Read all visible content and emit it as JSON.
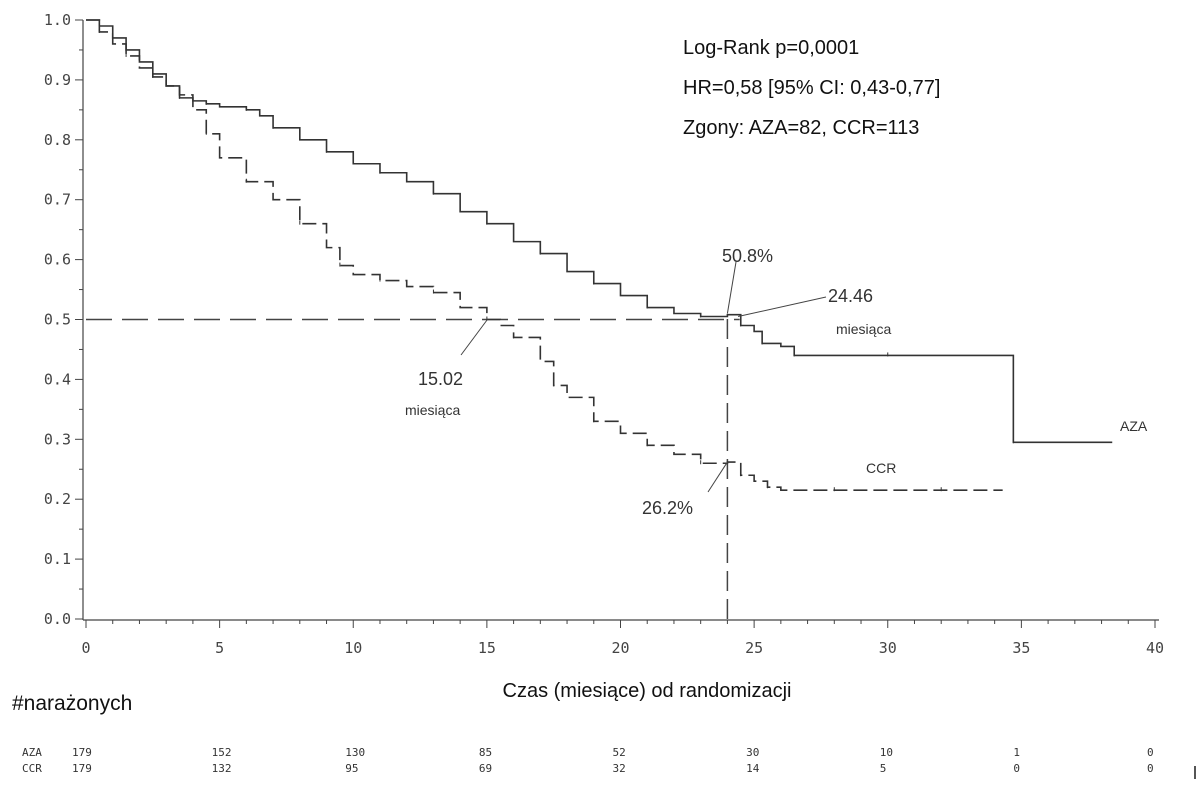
{
  "stats": {
    "line1": "Log-Rank p=0,0001",
    "line2": "HR=0,58 [95% CI: 0,43-0,77]",
    "line3": "Zgony: AZA=82, CCR=113"
  },
  "annotations": {
    "aza_pct": "50.8%",
    "ccr_pct": "26.2%",
    "aza_median": "24.46",
    "aza_median_unit": "miesiąca",
    "ccr_median": "15.02",
    "ccr_median_unit": "miesiąca",
    "aza_label": "AZA",
    "ccr_label": "CCR"
  },
  "risk_table": {
    "title": "#narażonych",
    "rows": [
      {
        "label": "AZA",
        "values": [
          "179",
          "152",
          "130",
          "85",
          "52",
          "30",
          "10",
          "1",
          "0"
        ]
      },
      {
        "label": "CCR",
        "values": [
          "179",
          "132",
          "95",
          "69",
          "32",
          "14",
          "5",
          "0",
          "0"
        ]
      }
    ]
  },
  "chart_data": {
    "type": "line",
    "xlabel": "Czas (miesiące) od randomizacji",
    "ylabel": "",
    "xlim": [
      0,
      40
    ],
    "ylim": [
      0,
      1
    ],
    "x_ticks": [
      "0",
      "5",
      "10",
      "15",
      "20",
      "25",
      "30",
      "35",
      "40"
    ],
    "y_ticks": [
      "0.0",
      "0.1",
      "0.2",
      "0.3",
      "0.4",
      "0.5",
      "0.6",
      "0.7",
      "0.8",
      "0.9",
      "1.0"
    ],
    "grid": false,
    "reference_lines": [
      {
        "orientation": "horizontal",
        "y": 0.5,
        "x_range": [
          0,
          24.46
        ]
      },
      {
        "orientation": "vertical",
        "x": 24.0,
        "y_range": [
          0,
          0.508
        ]
      }
    ],
    "series": [
      {
        "name": "AZA",
        "style": "solid",
        "color": "#333333",
        "x": [
          0,
          0.5,
          1,
          1.5,
          2,
          2.5,
          3,
          3.5,
          4,
          4.5,
          5,
          6,
          6.5,
          7,
          8,
          9,
          10,
          11,
          12,
          13,
          14,
          15,
          16,
          17,
          18,
          19,
          20,
          21,
          22,
          23,
          24,
          24.5,
          25,
          25.3,
          26,
          26.5,
          28,
          30,
          34.7,
          34.7,
          36,
          38.4
        ],
        "y": [
          1.0,
          0.99,
          0.97,
          0.95,
          0.93,
          0.91,
          0.89,
          0.87,
          0.865,
          0.86,
          0.855,
          0.85,
          0.84,
          0.82,
          0.8,
          0.78,
          0.76,
          0.745,
          0.73,
          0.71,
          0.68,
          0.66,
          0.63,
          0.61,
          0.58,
          0.56,
          0.54,
          0.52,
          0.51,
          0.505,
          0.508,
          0.49,
          0.48,
          0.46,
          0.455,
          0.44,
          0.44,
          0.44,
          0.44,
          0.295,
          0.295,
          0.295
        ]
      },
      {
        "name": "CCR",
        "style": "dashed",
        "color": "#333333",
        "x": [
          0,
          0.5,
          1,
          1.5,
          2,
          2.5,
          3,
          3.5,
          4,
          4.5,
          5,
          6,
          7,
          8,
          9,
          9.5,
          10,
          11,
          12,
          13,
          14,
          15,
          15.5,
          16,
          17,
          17.5,
          18,
          19,
          20,
          21,
          22,
          23,
          24,
          24.5,
          25,
          25.5,
          26,
          28,
          30,
          32,
          34.3
        ],
        "y": [
          1.0,
          0.98,
          0.96,
          0.94,
          0.92,
          0.905,
          0.89,
          0.875,
          0.85,
          0.81,
          0.77,
          0.73,
          0.7,
          0.66,
          0.62,
          0.59,
          0.575,
          0.565,
          0.555,
          0.545,
          0.52,
          0.5,
          0.49,
          0.47,
          0.43,
          0.39,
          0.37,
          0.33,
          0.31,
          0.29,
          0.275,
          0.26,
          0.262,
          0.24,
          0.23,
          0.22,
          0.215,
          0.215,
          0.215,
          0.215,
          0.215
        ]
      }
    ]
  }
}
